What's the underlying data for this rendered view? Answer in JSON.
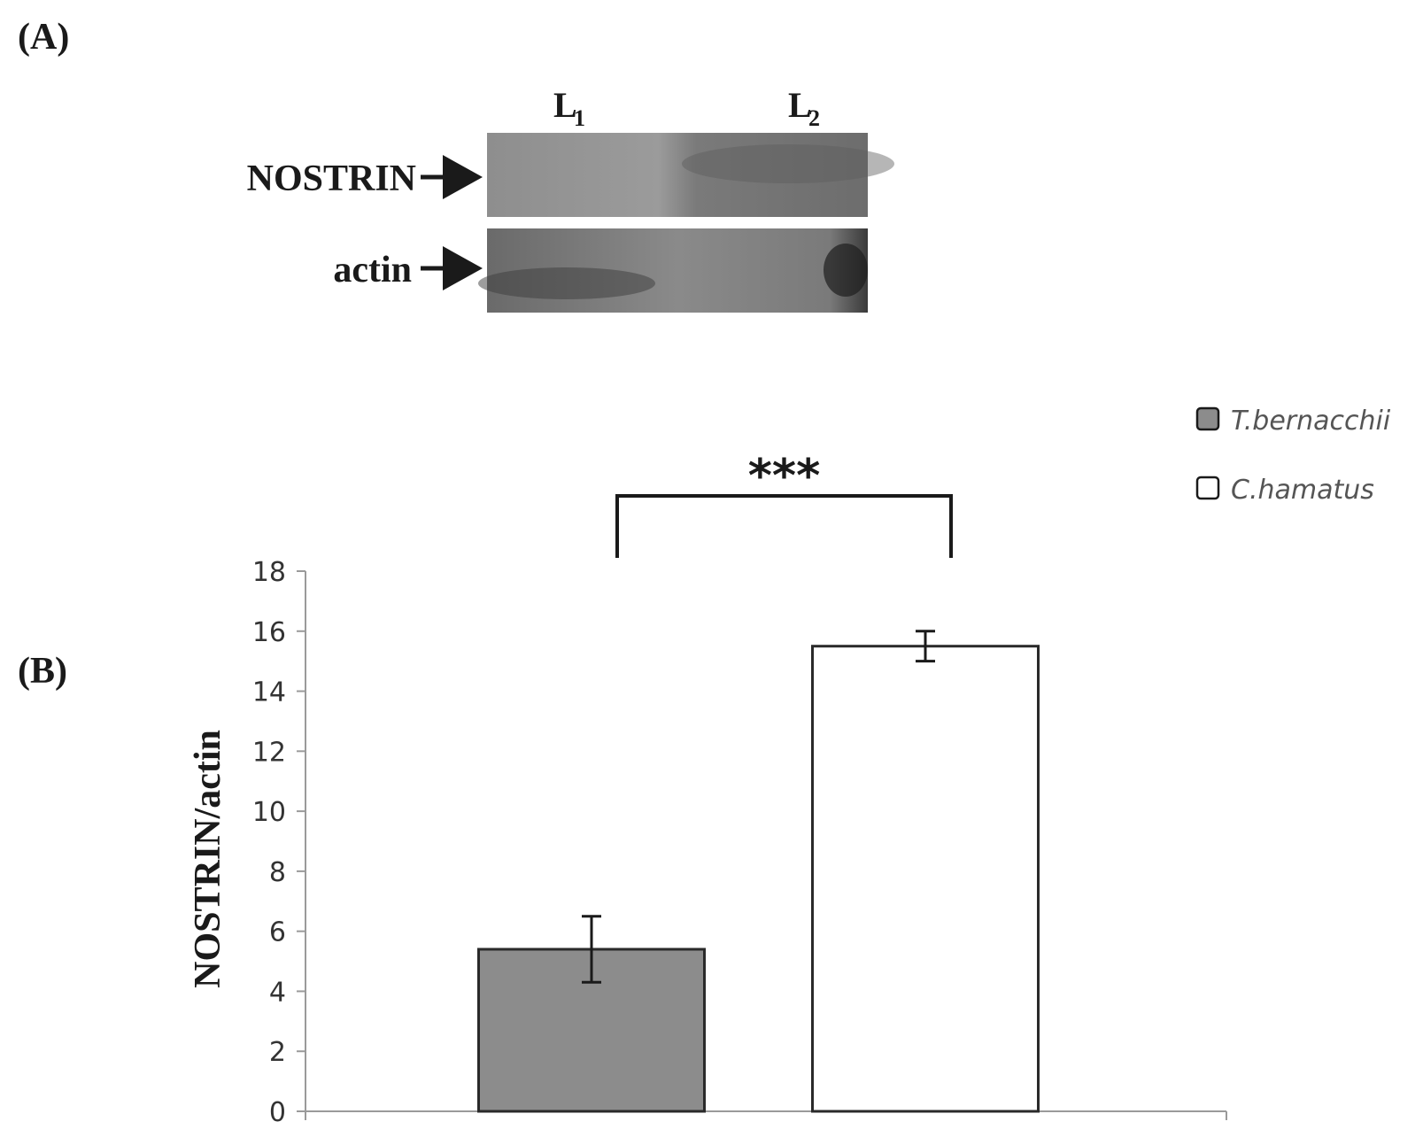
{
  "panel_a": {
    "label": "(A)",
    "lanes": [
      {
        "letter": "L",
        "sub": "1"
      },
      {
        "letter": "L",
        "sub": "2"
      }
    ],
    "rows": [
      {
        "label": "NOSTRIN"
      },
      {
        "label": "actin"
      }
    ]
  },
  "panel_b": {
    "label": "(B)",
    "significance": "***"
  },
  "colors": {
    "t_bernacchii": "#8c8c8c",
    "c_hamatus": "#ffffff",
    "axis": "#9a9a9a",
    "bar_edge": "#2a2a2a"
  },
  "chart_data": {
    "type": "bar",
    "categories": [
      "T.bernacchii",
      "C.hamatus"
    ],
    "values": [
      5.4,
      15.5
    ],
    "errors": [
      1.1,
      0.5
    ],
    "ylabel": "NOSTRIN/actin",
    "xlabel": "",
    "ylim": [
      0,
      18
    ],
    "yticks": [
      0,
      2,
      4,
      6,
      8,
      10,
      12,
      14,
      16,
      18
    ],
    "legend": {
      "placement": "top-right",
      "entries": [
        "T.bernacchii",
        "C.hamatus"
      ]
    },
    "grid": false
  }
}
